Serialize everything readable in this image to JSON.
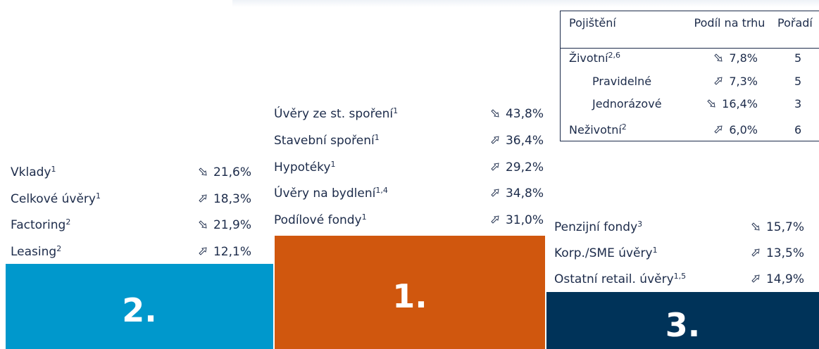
{
  "columns": [
    {
      "rank": "2.",
      "items": [
        {
          "label": "Vklady",
          "note": "1",
          "trend": "down",
          "value": "21,6%"
        },
        {
          "label": "Celkové úvěry",
          "note": "1",
          "trend": "up",
          "value": "18,3%"
        },
        {
          "label": "Factoring",
          "note": "2",
          "trend": "down",
          "value": "21,9%"
        },
        {
          "label": "Leasing",
          "note": "2",
          "trend": "up",
          "value": "12,1%"
        }
      ]
    },
    {
      "rank": "1.",
      "items": [
        {
          "label": "Úvěry ze st. spoření",
          "note": "1",
          "trend": "down",
          "value": "43,8%"
        },
        {
          "label": "Stavební spoření",
          "note": "1",
          "trend": "up",
          "value": "36,4%"
        },
        {
          "label": "Hypotéky",
          "note": "1",
          "trend": "up",
          "value": "29,2%"
        },
        {
          "label": "Úvěry na bydlení",
          "note": "1,4",
          "trend": "up",
          "value": "34,8%"
        },
        {
          "label": "Podílové fondy",
          "note": "1",
          "trend": "up",
          "value": "31,0%"
        }
      ]
    },
    {
      "rank": "3.",
      "items": [
        {
          "label": "Penzijní fondy",
          "note": "3",
          "trend": "down",
          "value": "15,7%"
        },
        {
          "label": "Korp./SME úvěry",
          "note": "1",
          "trend": "up",
          "value": "13,5%"
        },
        {
          "label": "Ostatní retail. úvěry",
          "note": "1,5",
          "trend": "up",
          "value": "14,9%"
        }
      ]
    }
  ],
  "table": {
    "header": [
      "Pojištění",
      "Podíl na trhu",
      "Pořadí"
    ],
    "rows": [
      {
        "label": "Životní",
        "note": "2,6",
        "trend": "down",
        "value": "7,8%",
        "rank": "5"
      },
      {
        "label": "Pravidelné",
        "trend": "up",
        "value": "7,3%",
        "rank": "5"
      },
      {
        "label": "Jednorázové",
        "trend": "down",
        "value": "16,4%",
        "rank": "3"
      },
      {
        "label": "Neživotní",
        "note": "2",
        "trend": "up",
        "value": "6,0%",
        "rank": "6"
      }
    ]
  }
}
